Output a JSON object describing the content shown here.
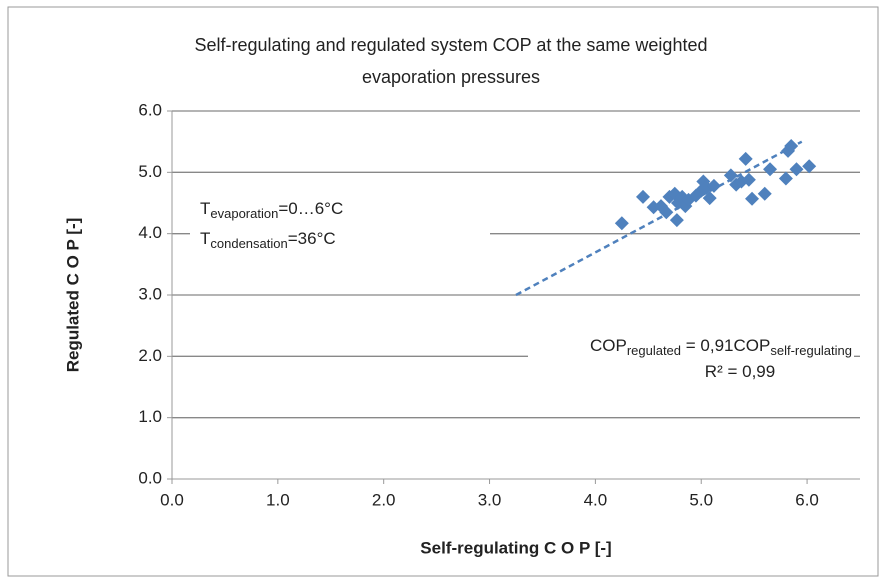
{
  "chart_data": {
    "type": "scatter",
    "title": [
      "Self-regulating and regulated system COP at the same weighted",
      "evaporation pressures"
    ],
    "x_label": "Self-regulating C O P [-]",
    "y_label": "Regulated C O P [-]",
    "color": "#4f81bd",
    "xlim": [
      0,
      6.5
    ],
    "ylim": [
      0,
      6
    ],
    "xticks": [
      {
        "value": 0,
        "label": "0.0"
      },
      {
        "value": 1,
        "label": "1.0"
      },
      {
        "value": 2,
        "label": "2.0"
      },
      {
        "value": 3,
        "label": "3.0"
      },
      {
        "value": 4,
        "label": "4.0"
      },
      {
        "value": 5,
        "label": "5.0"
      },
      {
        "value": 6,
        "label": "6.0"
      }
    ],
    "yticks": [
      {
        "value": 0,
        "label": "0.0"
      },
      {
        "value": 1,
        "label": "1.0"
      },
      {
        "value": 2,
        "label": "2.0"
      },
      {
        "value": 3,
        "label": "3.0"
      },
      {
        "value": 4,
        "label": "4.0"
      },
      {
        "value": 5,
        "label": "5.0"
      },
      {
        "value": 6,
        "label": "6.0"
      }
    ],
    "grid": true,
    "x": [
      4.25,
      4.45,
      4.55,
      4.62,
      4.67,
      4.7,
      4.75,
      4.77,
      4.78,
      4.82,
      4.85,
      4.88,
      4.95,
      5.0,
      5.02,
      5.05,
      5.08,
      5.12,
      5.28,
      5.33,
      5.38,
      5.42,
      5.45,
      5.48,
      5.6,
      5.65,
      5.8,
      5.82,
      5.85,
      5.9,
      6.02
    ],
    "values": [
      4.17,
      4.6,
      4.43,
      4.45,
      4.35,
      4.6,
      4.65,
      4.22,
      4.5,
      4.6,
      4.45,
      4.55,
      4.62,
      4.7,
      4.85,
      4.75,
      4.58,
      4.78,
      4.95,
      4.8,
      4.85,
      5.22,
      4.88,
      4.57,
      4.65,
      5.05,
      4.9,
      5.35,
      5.43,
      5.05,
      5.1
    ],
    "trendline": {
      "x": [
        3.25,
        5.95
      ],
      "y": [
        3.0,
        5.5
      ]
    },
    "annotations": [
      {
        "base": "T",
        "sub": "evaporation",
        "rest": "=0…6°C"
      },
      {
        "base": "T",
        "sub": "condensation",
        "rest": "=36°C"
      },
      {
        "base": "COP",
        "sub": "regulated",
        "rest": " = 0,91COP",
        "sub2": "self-regulating"
      },
      {
        "base": "R² = 0,99"
      }
    ]
  }
}
